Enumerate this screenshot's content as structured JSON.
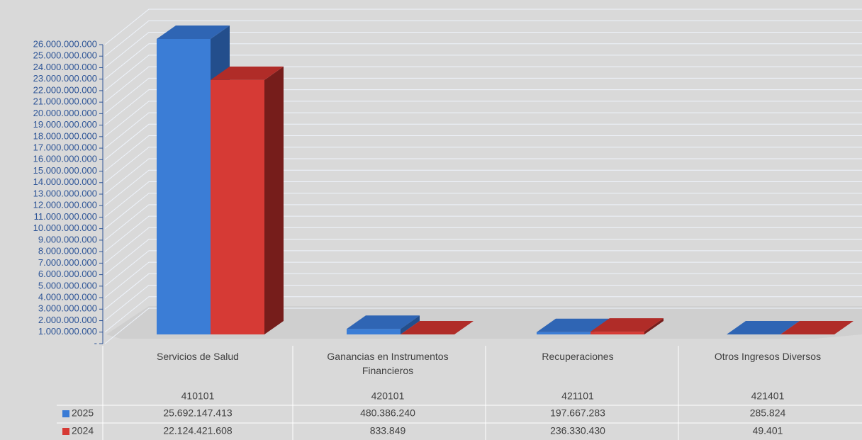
{
  "chart_data": {
    "type": "bar3d",
    "categories": [
      "Servicios de Salud",
      "Ganancias en Instrumentos Financieros",
      "Recuperaciones",
      "Otros Ingresos Diversos"
    ],
    "codes": [
      "410101",
      "420101",
      "421101",
      "421401"
    ],
    "series": [
      {
        "name": "2025",
        "color": "#3a7bd5",
        "values": [
          25692147413,
          480386240,
          197667283,
          285824
        ],
        "value_labels": [
          "25.692.147.413",
          "480.386.240",
          "197.667.283",
          "285.824"
        ]
      },
      {
        "name": "2024",
        "color": "#d63a35",
        "values": [
          22124421608,
          833849,
          236330430,
          49401
        ],
        "value_labels": [
          "22.124.421.608",
          "833.849",
          "236.330.430",
          "49.401"
        ]
      }
    ],
    "ylim": [
      0,
      26000000000
    ],
    "yticks": [
      {
        "value": 0,
        "label": "-"
      },
      {
        "value": 1000000000,
        "label": "1.000.000.000"
      },
      {
        "value": 2000000000,
        "label": "2.000.000.000"
      },
      {
        "value": 3000000000,
        "label": "3.000.000.000"
      },
      {
        "value": 4000000000,
        "label": "4.000.000.000"
      },
      {
        "value": 5000000000,
        "label": "5.000.000.000"
      },
      {
        "value": 6000000000,
        "label": "6.000.000.000"
      },
      {
        "value": 7000000000,
        "label": "7.000.000.000"
      },
      {
        "value": 8000000000,
        "label": "8.000.000.000"
      },
      {
        "value": 9000000000,
        "label": "9.000.000.000"
      },
      {
        "value": 10000000000,
        "label": "10.000.000.000"
      },
      {
        "value": 11000000000,
        "label": "11.000.000.000"
      },
      {
        "value": 12000000000,
        "label": "12.000.000.000"
      },
      {
        "value": 13000000000,
        "label": "13.000.000.000"
      },
      {
        "value": 14000000000,
        "label": "14.000.000.000"
      },
      {
        "value": 15000000000,
        "label": "15.000.000.000"
      },
      {
        "value": 16000000000,
        "label": "16.000.000.000"
      },
      {
        "value": 17000000000,
        "label": "17.000.000.000"
      },
      {
        "value": 18000000000,
        "label": "18.000.000.000"
      },
      {
        "value": 19000000000,
        "label": "19.000.000.000"
      },
      {
        "value": 20000000000,
        "label": "20.000.000.000"
      },
      {
        "value": 21000000000,
        "label": "21.000.000.000"
      },
      {
        "value": 22000000000,
        "label": "22.000.000.000"
      },
      {
        "value": 23000000000,
        "label": "23.000.000.000"
      },
      {
        "value": 24000000000,
        "label": "24.000.000.000"
      },
      {
        "value": 25000000000,
        "label": "25.000.000.000"
      },
      {
        "value": 26000000000,
        "label": "26.000.000.000"
      }
    ],
    "grid": true
  }
}
